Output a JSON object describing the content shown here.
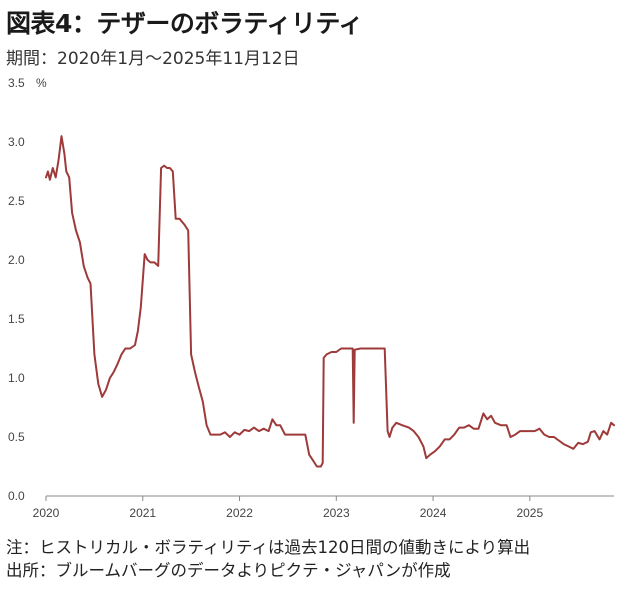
{
  "title": "図表4：テザーのボラティリティ",
  "subtitle": "期間：2020年1月～2025年11月12日",
  "notes": {
    "note": "注：ヒストリカル・ボラティリティは過去120日間の値動きにより算出",
    "source": "出所：ブルームバーグのデータよりピクテ・ジャパンが作成"
  },
  "chart_data": {
    "type": "line",
    "title": "",
    "xlabel": "",
    "ylabel": "",
    "unit_label": "%",
    "ylim": [
      0,
      3.5
    ],
    "xlim": [
      2020.0,
      2025.87
    ],
    "y_ticks": [
      "0.0",
      "0.5",
      "1.0",
      "1.5",
      "2.0",
      "2.5",
      "3.0",
      "3.5"
    ],
    "x_ticks": [
      "2020",
      "2021",
      "2022",
      "2023",
      "2024",
      "2025"
    ],
    "grid": false,
    "colors": {
      "line": "#9e3a3a",
      "axis": "#888888"
    },
    "series": [
      {
        "values": [
          [
            2020.0,
            2.7
          ],
          [
            2020.02,
            2.75
          ],
          [
            2020.04,
            2.68
          ],
          [
            2020.07,
            2.78
          ],
          [
            2020.1,
            2.7
          ],
          [
            2020.13,
            2.85
          ],
          [
            2020.16,
            3.05
          ],
          [
            2020.19,
            2.9
          ],
          [
            2020.21,
            2.75
          ],
          [
            2020.24,
            2.7
          ],
          [
            2020.27,
            2.4
          ],
          [
            2020.31,
            2.25
          ],
          [
            2020.35,
            2.15
          ],
          [
            2020.39,
            1.95
          ],
          [
            2020.43,
            1.85
          ],
          [
            2020.46,
            1.8
          ],
          [
            2020.5,
            1.2
          ],
          [
            2020.54,
            0.95
          ],
          [
            2020.58,
            0.84
          ],
          [
            2020.62,
            0.9
          ],
          [
            2020.66,
            1.0
          ],
          [
            2020.7,
            1.05
          ],
          [
            2020.74,
            1.12
          ],
          [
            2020.78,
            1.2
          ],
          [
            2020.82,
            1.25
          ],
          [
            2020.87,
            1.25
          ],
          [
            2020.92,
            1.28
          ],
          [
            2020.95,
            1.4
          ],
          [
            2020.98,
            1.6
          ],
          [
            2021.02,
            2.05
          ],
          [
            2021.05,
            2.0
          ],
          [
            2021.08,
            1.98
          ],
          [
            2021.12,
            1.98
          ],
          [
            2021.16,
            1.95
          ],
          [
            2021.19,
            2.78
          ],
          [
            2021.22,
            2.8
          ],
          [
            2021.25,
            2.78
          ],
          [
            2021.28,
            2.78
          ],
          [
            2021.31,
            2.75
          ],
          [
            2021.34,
            2.35
          ],
          [
            2021.38,
            2.35
          ],
          [
            2021.43,
            2.3
          ],
          [
            2021.47,
            2.25
          ],
          [
            2021.5,
            1.2
          ],
          [
            2021.54,
            1.05
          ],
          [
            2021.58,
            0.92
          ],
          [
            2021.62,
            0.8
          ],
          [
            2021.66,
            0.6
          ],
          [
            2021.7,
            0.52
          ],
          [
            2021.75,
            0.52
          ],
          [
            2021.8,
            0.52
          ],
          [
            2021.85,
            0.54
          ],
          [
            2021.9,
            0.5
          ],
          [
            2021.95,
            0.54
          ],
          [
            2022.0,
            0.52
          ],
          [
            2022.05,
            0.56
          ],
          [
            2022.1,
            0.55
          ],
          [
            2022.15,
            0.58
          ],
          [
            2022.2,
            0.55
          ],
          [
            2022.25,
            0.57
          ],
          [
            2022.3,
            0.55
          ],
          [
            2022.34,
            0.65
          ],
          [
            2022.38,
            0.6
          ],
          [
            2022.42,
            0.6
          ],
          [
            2022.47,
            0.52
          ],
          [
            2022.52,
            0.52
          ],
          [
            2022.57,
            0.52
          ],
          [
            2022.62,
            0.52
          ],
          [
            2022.68,
            0.52
          ],
          [
            2022.72,
            0.35
          ],
          [
            2022.76,
            0.3
          ],
          [
            2022.8,
            0.25
          ],
          [
            2022.84,
            0.25
          ],
          [
            2022.86,
            0.28
          ],
          [
            2022.87,
            1.17
          ],
          [
            2022.9,
            1.2
          ],
          [
            2022.95,
            1.22
          ],
          [
            2023.0,
            1.22
          ],
          [
            2023.05,
            1.25
          ],
          [
            2023.1,
            1.25
          ],
          [
            2023.17,
            1.25
          ],
          [
            2023.18,
            0.62
          ],
          [
            2023.19,
            1.24
          ],
          [
            2023.25,
            1.25
          ],
          [
            2023.3,
            1.25
          ],
          [
            2023.35,
            1.25
          ],
          [
            2023.4,
            1.25
          ],
          [
            2023.45,
            1.25
          ],
          [
            2023.5,
            1.25
          ],
          [
            2023.53,
            0.55
          ],
          [
            2023.55,
            0.5
          ],
          [
            2023.58,
            0.58
          ],
          [
            2023.62,
            0.62
          ],
          [
            2023.68,
            0.6
          ],
          [
            2023.75,
            0.58
          ],
          [
            2023.8,
            0.55
          ],
          [
            2023.85,
            0.5
          ],
          [
            2023.9,
            0.42
          ],
          [
            2023.93,
            0.32
          ],
          [
            2023.97,
            0.35
          ],
          [
            2024.02,
            0.38
          ],
          [
            2024.07,
            0.42
          ],
          [
            2024.12,
            0.48
          ],
          [
            2024.17,
            0.48
          ],
          [
            2024.22,
            0.52
          ],
          [
            2024.27,
            0.58
          ],
          [
            2024.32,
            0.58
          ],
          [
            2024.37,
            0.6
          ],
          [
            2024.42,
            0.57
          ],
          [
            2024.47,
            0.57
          ],
          [
            2024.52,
            0.7
          ],
          [
            2024.56,
            0.65
          ],
          [
            2024.6,
            0.68
          ],
          [
            2024.64,
            0.62
          ],
          [
            2024.7,
            0.6
          ],
          [
            2024.76,
            0.6
          ],
          [
            2024.8,
            0.5
          ],
          [
            2024.85,
            0.52
          ],
          [
            2024.9,
            0.55
          ],
          [
            2024.95,
            0.55
          ],
          [
            2025.0,
            0.55
          ],
          [
            2025.05,
            0.55
          ],
          [
            2025.1,
            0.57
          ],
          [
            2025.15,
            0.52
          ],
          [
            2025.2,
            0.5
          ],
          [
            2025.25,
            0.5
          ],
          [
            2025.3,
            0.47
          ],
          [
            2025.35,
            0.44
          ],
          [
            2025.4,
            0.42
          ],
          [
            2025.45,
            0.4
          ],
          [
            2025.5,
            0.45
          ],
          [
            2025.55,
            0.44
          ],
          [
            2025.6,
            0.46
          ],
          [
            2025.63,
            0.54
          ],
          [
            2025.67,
            0.55
          ],
          [
            2025.72,
            0.48
          ],
          [
            2025.76,
            0.55
          ],
          [
            2025.8,
            0.52
          ],
          [
            2025.84,
            0.62
          ],
          [
            2025.87,
            0.6
          ]
        ]
      }
    ]
  }
}
